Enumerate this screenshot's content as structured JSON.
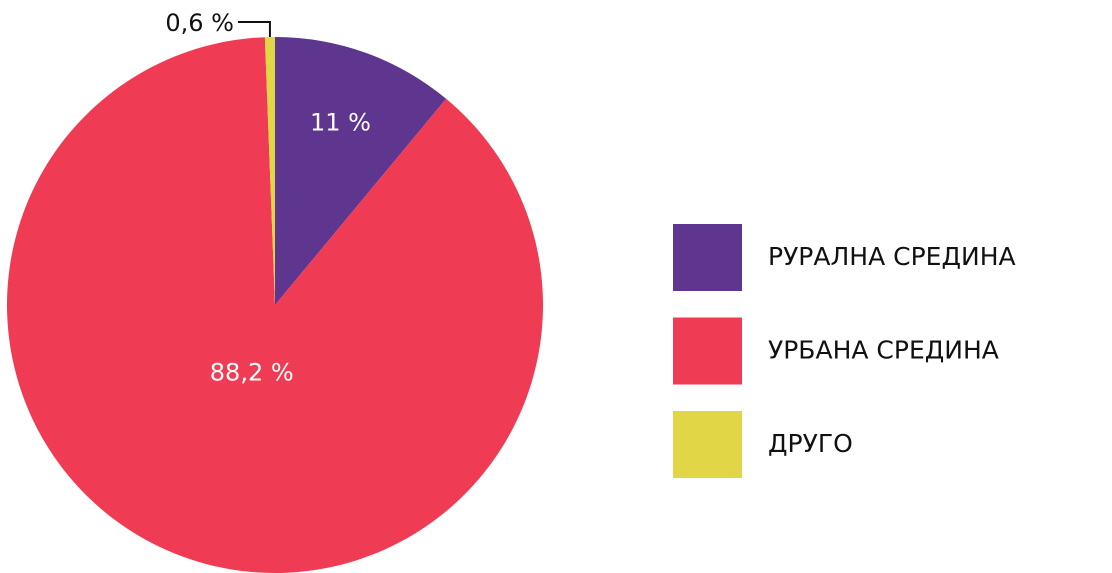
{
  "chart_data": {
    "type": "pie",
    "categories": [
      "РУРАЛНА СРЕДИНА",
      "УРБАНА СРЕДИНА",
      "ДРУГО"
    ],
    "values": [
      11,
      88.2,
      0.6
    ],
    "value_labels": [
      "11 %",
      "88,2 %",
      "0,6 %"
    ],
    "colors": [
      "#5e358f",
      "#ef3b53",
      "#e1d645"
    ],
    "legend": "right"
  }
}
